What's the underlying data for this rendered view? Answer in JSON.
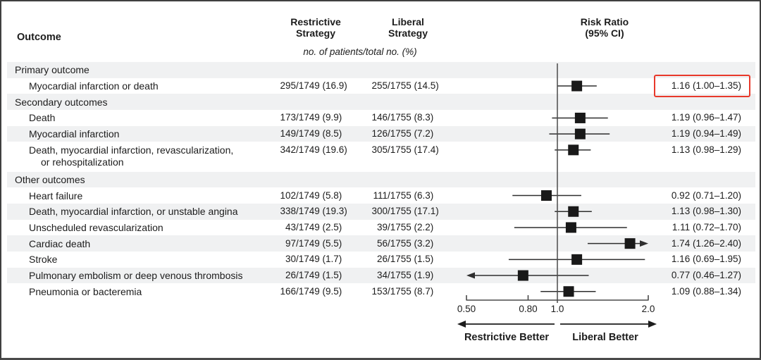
{
  "header": {
    "outcome_label": "Outcome",
    "restrictive_line1": "Restrictive",
    "restrictive_line2": "Strategy",
    "liberal_line1": "Liberal",
    "liberal_line2": "Strategy",
    "risk_ratio_line1": "Risk Ratio",
    "risk_ratio_line2": "(95% CI)",
    "subheader": "no. of patients/total no. (%)"
  },
  "colors": {
    "highlight_red": "#e8392b",
    "row_shade": "#f0f1f2",
    "marker_black": "#191919",
    "line_gray": "#4a4a4a"
  },
  "chart_data": {
    "type": "forest",
    "axis_min": 0.5,
    "axis_max": 2.0,
    "axis_ticks": [
      {
        "value": 0.5,
        "label": "0.50"
      },
      {
        "value": 0.8,
        "label": "0.80"
      },
      {
        "value": 1.0,
        "label": "1.0"
      },
      {
        "value": 2.0,
        "label": "2.0"
      }
    ],
    "left_direction_label": "Restrictive Better",
    "right_direction_label": "Liberal Better",
    "rows": [
      {
        "type": "section",
        "label": "Primary outcome"
      },
      {
        "type": "outcome",
        "label": "Myocardial infarction or death",
        "restrictive": "295/1749 (16.9)",
        "liberal": "255/1755 (14.5)",
        "rr": 1.16,
        "ci_low": 1.0,
        "ci_high": 1.35,
        "rr_text": "1.16 (1.00–1.35)",
        "highlight": true
      },
      {
        "type": "section",
        "label": "Secondary outcomes"
      },
      {
        "type": "outcome",
        "label": "Death",
        "restrictive": "173/1749 (9.9)",
        "liberal": "146/1755 (8.3)",
        "rr": 1.19,
        "ci_low": 0.96,
        "ci_high": 1.47,
        "rr_text": "1.19 (0.96–1.47)"
      },
      {
        "type": "outcome",
        "label": "Myocardial infarction",
        "restrictive": "149/1749 (8.5)",
        "liberal": "126/1755 (7.2)",
        "rr": 1.19,
        "ci_low": 0.94,
        "ci_high": 1.49,
        "rr_text": "1.19 (0.94–1.49)"
      },
      {
        "type": "outcome",
        "label": "Death, myocardial infarction, revascularization,",
        "label2": "or rehospitalization",
        "restrictive": "342/1749 (19.6)",
        "liberal": "305/1755 (17.4)",
        "rr": 1.13,
        "ci_low": 0.98,
        "ci_high": 1.29,
        "rr_text": "1.13 (0.98–1.29)"
      },
      {
        "type": "section",
        "label": "Other outcomes"
      },
      {
        "type": "outcome",
        "label": "Heart failure",
        "restrictive": "102/1749 (5.8)",
        "liberal": "111/1755 (6.3)",
        "rr": 0.92,
        "ci_low": 0.71,
        "ci_high": 1.2,
        "rr_text": "0.92 (0.71–1.20)"
      },
      {
        "type": "outcome",
        "label": "Death, myocardial infarction, or unstable angina",
        "restrictive": "338/1749 (19.3)",
        "liberal": "300/1755 (17.1)",
        "rr": 1.13,
        "ci_low": 0.98,
        "ci_high": 1.3,
        "rr_text": "1.13 (0.98–1.30)"
      },
      {
        "type": "outcome",
        "label": "Unscheduled revascularization",
        "restrictive": "43/1749 (2.5)",
        "liberal": "39/1755 (2.2)",
        "rr": 1.11,
        "ci_low": 0.72,
        "ci_high": 1.7,
        "rr_text": "1.11 (0.72–1.70)"
      },
      {
        "type": "outcome",
        "label": "Cardiac death",
        "restrictive": "97/1749 (5.5)",
        "liberal": "56/1755 (3.2)",
        "rr": 1.74,
        "ci_low": 1.26,
        "ci_high": 2.4,
        "rr_text": "1.74 (1.26–2.40)"
      },
      {
        "type": "outcome",
        "label": "Stroke",
        "restrictive": "30/1749 (1.7)",
        "liberal": "26/1755 (1.5)",
        "rr": 1.16,
        "ci_low": 0.69,
        "ci_high": 1.95,
        "rr_text": "1.16 (0.69–1.95)"
      },
      {
        "type": "outcome",
        "label": "Pulmonary embolism or deep venous thrombosis",
        "restrictive": "26/1749 (1.5)",
        "liberal": "34/1755 (1.9)",
        "rr": 0.77,
        "ci_low": 0.46,
        "ci_high": 1.27,
        "rr_text": "0.77 (0.46–1.27)"
      },
      {
        "type": "outcome",
        "label": "Pneumonia or bacteremia",
        "restrictive": "166/1749 (9.5)",
        "liberal": "153/1755 (8.7)",
        "rr": 1.09,
        "ci_low": 0.88,
        "ci_high": 1.34,
        "rr_text": "1.09 (0.88–1.34)"
      }
    ]
  }
}
